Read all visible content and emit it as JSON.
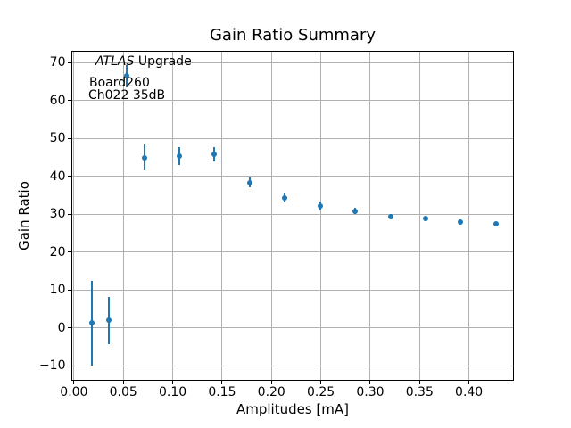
{
  "chart_data": {
    "type": "scatter",
    "title": "Gain Ratio Summary",
    "xlabel": "Amplitudes [mA]",
    "ylabel": "Gain Ratio",
    "xlim": [
      -0.0026,
      0.4455
    ],
    "ylim": [
      -13.95,
      72.95
    ],
    "grid": true,
    "legend": "none",
    "grid_color": "#b0b0b0",
    "spine_color": "#000000",
    "xticks": {
      "values": [
        0.0,
        0.05,
        0.1,
        0.15,
        0.2,
        0.25,
        0.3,
        0.35,
        0.4
      ],
      "labels": [
        "0.00",
        "0.05",
        "0.10",
        "0.15",
        "0.20",
        "0.25",
        "0.30",
        "0.35",
        "0.40"
      ]
    },
    "yticks": {
      "values": [
        -10,
        0,
        10,
        20,
        30,
        40,
        50,
        60,
        70
      ],
      "labels": [
        "−10",
        "0",
        "10",
        "20",
        "30",
        "40",
        "50",
        "60",
        "70"
      ]
    },
    "series": [
      {
        "name": "gain-ratio",
        "marker": "dot",
        "color": "#1f77b4",
        "points": [
          {
            "x": 0.0178,
            "y": 1.3,
            "yerr": 11.1
          },
          {
            "x": 0.0356,
            "y": 2.0,
            "yerr": 6.2
          },
          {
            "x": 0.0534,
            "y": 66.4,
            "yerr": 3.0
          },
          {
            "x": 0.0712,
            "y": 44.9,
            "yerr": 3.4
          },
          {
            "x": 0.1068,
            "y": 45.4,
            "yerr": 2.4
          },
          {
            "x": 0.1424,
            "y": 45.8,
            "yerr": 1.8
          },
          {
            "x": 0.178,
            "y": 38.4,
            "yerr": 1.3
          },
          {
            "x": 0.2136,
            "y": 34.4,
            "yerr": 1.2
          },
          {
            "x": 0.2492,
            "y": 32.2,
            "yerr": 1.1
          },
          {
            "x": 0.2848,
            "y": 30.8,
            "yerr": 0.8
          },
          {
            "x": 0.3204,
            "y": 29.4,
            "yerr": 0.6
          },
          {
            "x": 0.356,
            "y": 28.8,
            "yerr": 0.5
          },
          {
            "x": 0.3916,
            "y": 28.0,
            "yerr": 0.5
          },
          {
            "x": 0.4272,
            "y": 27.5,
            "yerr": 0.4
          }
        ]
      }
    ],
    "annotations": [
      {
        "parts": [
          {
            "text": "ATLAS",
            "style": "italic"
          },
          {
            "text": " Upgrade",
            "style": "normal"
          }
        ]
      },
      {
        "text": "Board260"
      },
      {
        "text": "Ch022 35dB"
      }
    ]
  }
}
